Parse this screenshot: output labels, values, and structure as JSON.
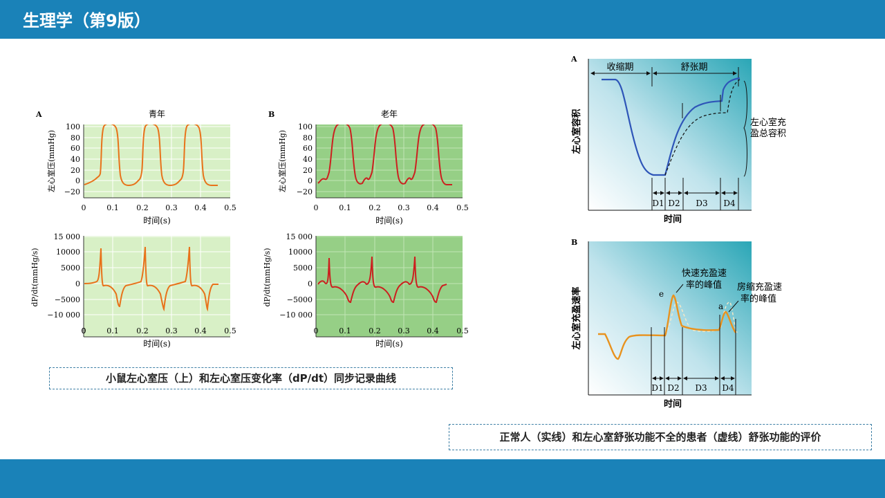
{
  "header": {
    "title": "生理学（第9版）"
  },
  "colors": {
    "header_bg": "#1a82b8",
    "young_bg": "#d8f0c6",
    "old_bg": "#96cf86",
    "young_line": "#e8721a",
    "old_line": "#cc1f1f",
    "right_line": "#2e55b8",
    "right_orange": "#e8921e"
  },
  "left_figure": {
    "panel_a_label": "A",
    "panel_b_label": "B",
    "young_title": "青年",
    "old_title": "老年",
    "pressure_ylabel": "左心室压(mmHg)",
    "rate_ylabel": "dP/dt(mmHg/s)",
    "xlabel": "时间(s)",
    "pressure_ticks": [
      "100",
      "80",
      "60",
      "40",
      "20",
      "0",
      "−20"
    ],
    "rate_ticks": [
      "15 000",
      "10000",
      "5000",
      "0",
      "−5000",
      "−10 000"
    ],
    "x_ticks": [
      "0",
      "0.1",
      "0.2",
      "0.3",
      "0.4",
      "0.5"
    ],
    "caption": "小鼠左心室压（上）和左心室压变化率（dP/dt）同步记录曲线"
  },
  "right_figure": {
    "panel_a_label": "A",
    "panel_b_label": "B",
    "systole_label": "收缩期",
    "diastole_label": "舒张期",
    "volume_ylabel": "左心室容积",
    "total_volume_label_1": "左心室充",
    "total_volume_label_2": "盈总容积",
    "rate_ylabel": "左心室充盈速率",
    "peak_e_label_1": "快速充盈速",
    "peak_e_label_2": "率的峰值",
    "peak_a_label_1": "房缩充盈速",
    "peak_a_label_2": "率的峰值",
    "e_marker": "e",
    "a_marker": "a",
    "phase_labels": [
      "D1",
      "D2",
      "D3",
      "D4"
    ],
    "xlabel": "时间",
    "caption": "正常人（实线）和左心室舒张功能不全的患者（虚线）舒张功能的评价"
  }
}
